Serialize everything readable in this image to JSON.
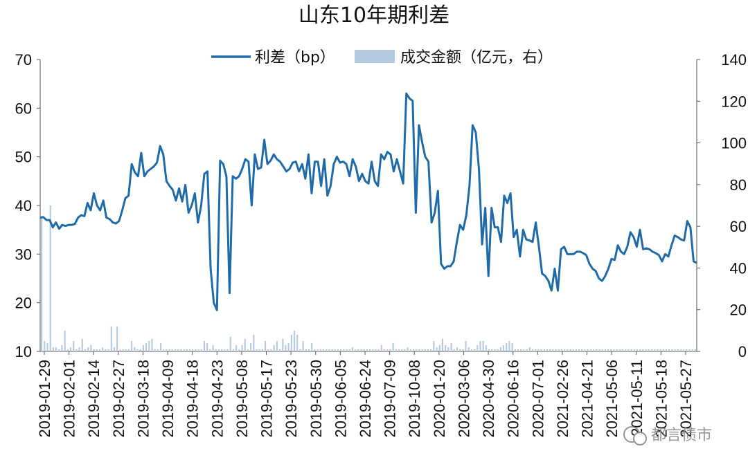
{
  "chart_data": {
    "type": "line",
    "title": "山东10年期利差",
    "legend": [
      {
        "name": "利差（bp）",
        "kind": "line",
        "color": "#1f6aa8"
      },
      {
        "name": "成交金额（亿元，右）",
        "kind": "bar",
        "color": "#b4c8e0"
      }
    ],
    "legend_position": "top",
    "y_left": {
      "min": 10,
      "max": 70,
      "ticks": [
        "10",
        "20",
        "30",
        "40",
        "50",
        "60",
        "70"
      ]
    },
    "y_right": {
      "min": 0,
      "max": 140,
      "ticks": [
        "0",
        "20",
        "40",
        "60",
        "80",
        "100",
        "120",
        "140"
      ]
    },
    "x_tick_labels": [
      "2019-01-29",
      "2019-02-01",
      "2019-02-14",
      "2019-02-27",
      "2019-03-18",
      "2019-04-09",
      "2019-04-18",
      "2019-04-23",
      "2019-05-08",
      "2019-05-17",
      "2019-05-23",
      "2019-05-30",
      "2019-06-05",
      "2019-06-24",
      "2019-07-09",
      "2019-10-08",
      "2020-01-20",
      "2020-03-06",
      "2020-04-30",
      "2020-06-16",
      "2020-07-01",
      "2021-02-26",
      "2021-04-21",
      "2021-05-06",
      "2021-05-11",
      "2021-05-18",
      "2021-05-27"
    ],
    "spread_series": [
      37.5,
      37.6,
      37,
      37,
      35.5,
      36.5,
      35.2,
      36,
      35.8,
      36,
      36,
      36.2,
      37.5,
      38,
      37.8,
      40.5,
      39,
      42.5,
      40,
      39,
      41,
      37.5,
      37.2,
      36.5,
      36.3,
      36.8,
      39,
      41.5,
      42,
      48.5,
      46.8,
      46,
      50.8,
      46,
      47,
      47.5,
      48,
      48.8,
      52.2,
      50.5,
      45,
      44,
      43.2,
      41,
      43.5,
      40.8,
      44.2,
      38.5,
      40,
      42.5,
      36.5,
      40,
      46.5,
      47,
      27,
      20,
      18.5,
      49.2,
      48.5,
      46,
      22,
      46,
      45.5,
      46,
      47.5,
      49.5,
      49,
      40,
      50.5,
      47.5,
      47.8,
      53.5,
      48.5,
      49.2,
      50.5,
      49.5,
      49,
      48,
      47,
      47.5,
      48.8,
      49,
      47,
      48.5,
      45.5,
      50.5,
      42.5,
      49,
      49,
      44,
      49.5,
      42,
      44,
      48.5,
      50,
      48.8,
      49,
      48.5,
      46,
      49.5,
      48,
      45,
      46.5,
      45,
      44.5,
      49,
      45,
      44,
      50.5,
      49.5,
      51,
      50.5,
      47,
      49.5,
      47,
      44.5,
      63,
      62,
      61.5,
      38.5,
      56.5,
      53,
      50,
      49,
      36.5,
      38.5,
      43,
      28,
      27,
      27.5,
      27.5,
      28.5,
      32.5,
      36,
      35,
      38,
      44,
      56.5,
      55,
      47.5,
      32,
      39.5,
      25.5,
      39.5,
      35.5,
      35.5,
      32.5,
      42,
      40.5,
      42.5,
      33.5,
      35,
      29.5,
      35,
      33,
      32.8,
      32.5,
      36.5,
      31.5,
      26,
      25.5,
      24.5,
      22.5,
      27,
      22.5,
      31,
      31.5,
      30,
      30,
      30,
      30.5,
      30.5,
      30.2,
      29.8,
      28,
      27,
      26.5,
      25,
      24.5,
      25.5,
      27,
      29,
      28.8,
      31.8,
      30.5,
      30,
      31.5,
      34.5,
      33.5,
      31.5,
      35,
      31,
      31.2,
      31,
      30.5,
      30.2,
      29.8,
      28.5,
      30,
      29.5,
      31.8,
      33.8,
      33.5,
      33,
      32.8,
      36.8,
      35.5,
      28.5,
      28.2
    ],
    "volume_series": [
      65,
      5,
      4,
      70,
      2,
      2,
      1,
      3,
      10,
      1,
      2,
      5,
      1,
      2,
      6,
      1,
      2,
      3,
      1,
      1,
      1,
      2,
      1,
      1,
      12,
      2,
      12,
      1,
      1,
      1,
      1,
      5,
      2,
      1,
      1,
      3,
      4,
      5,
      6,
      1,
      1,
      4,
      1,
      1,
      1,
      1,
      1,
      1,
      1,
      1,
      1,
      1,
      1,
      1,
      1,
      1,
      5,
      4,
      1,
      3,
      1,
      1,
      1,
      1,
      1,
      7,
      1,
      3,
      1,
      3,
      6,
      1,
      4,
      8,
      1,
      1,
      1,
      5,
      1,
      1,
      3,
      5,
      1,
      6,
      3,
      4,
      8,
      10,
      8,
      1,
      5,
      1,
      1,
      4,
      1,
      1,
      1,
      1,
      1,
      1,
      1,
      1,
      1,
      1,
      1,
      1,
      1,
      2,
      1,
      1,
      1,
      1,
      1,
      1,
      1,
      1,
      1,
      3,
      1,
      1,
      1,
      4,
      1,
      1,
      1,
      1,
      2,
      1,
      1,
      1,
      1,
      1,
      1,
      1,
      1,
      5,
      2,
      3,
      6,
      3,
      2,
      4,
      1,
      2,
      1,
      1,
      5,
      2,
      1,
      1,
      3,
      5,
      5,
      3,
      1,
      1,
      1,
      1,
      2,
      3,
      4,
      5,
      4,
      1,
      1,
      1,
      1,
      1,
      2,
      1,
      1,
      1,
      1,
      1,
      1,
      1,
      1,
      1,
      1,
      1,
      1,
      1,
      1,
      1,
      1,
      1,
      1,
      1,
      1,
      1,
      1,
      1,
      1,
      1,
      1,
      1,
      1,
      1,
      1,
      1,
      1,
      1,
      1,
      1,
      1,
      1,
      1,
      1,
      1,
      1,
      1,
      1,
      1,
      1,
      1,
      1,
      1,
      1,
      1,
      1,
      1,
      1,
      1,
      1,
      1,
      1
    ]
  },
  "watermark": {
    "icon": "wechat-icon",
    "text": "都言债市"
  }
}
